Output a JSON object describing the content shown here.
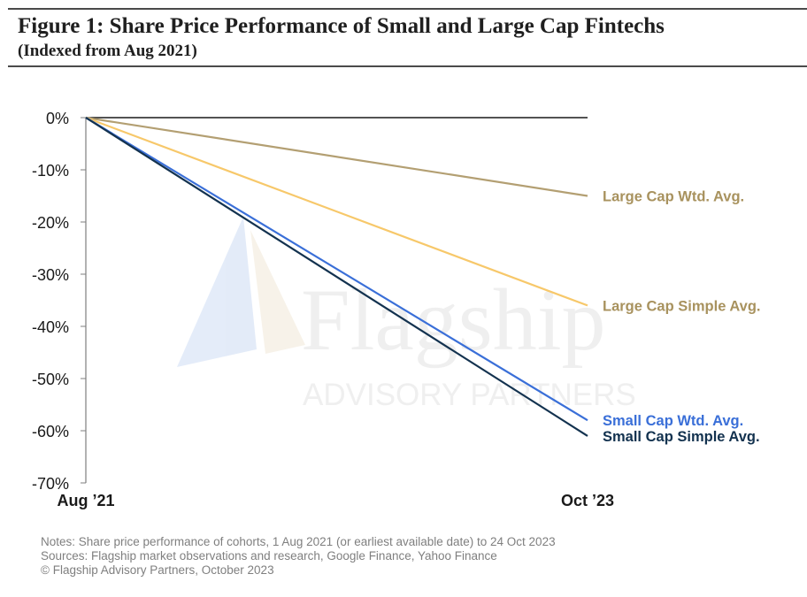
{
  "title": "Figure 1: Share Price Performance of Small and Large Cap Fintechs",
  "subtitle": "(Indexed from Aug 2021)",
  "watermark": {
    "brand": "Flagship",
    "tagline": "ADVISORY PARTNERS"
  },
  "notes": [
    "Notes: Share price performance of cohorts, 1 Aug 2021 (or earliest available date) to 24 Oct 2023",
    "Sources: Flagship market observations and research, Google Finance, Yahoo Finance",
    "© Flagship Advisory Partners, October 2023"
  ],
  "chart_data": {
    "type": "line",
    "x": [
      "Aug ’21",
      "Oct ’23"
    ],
    "x_tick_labels": [
      "Aug ’21",
      "Oct ’23"
    ],
    "y_tick_labels": [
      "0%",
      "-10%",
      "-20%",
      "-30%",
      "-40%",
      "-50%",
      "-60%",
      "-70%"
    ],
    "y_ticks": [
      0,
      -10,
      -20,
      -30,
      -40,
      -50,
      -60,
      -70
    ],
    "ylim": [
      -70,
      0
    ],
    "grid": false,
    "legend": "direct labels at line ends",
    "series": [
      {
        "name": "Large Cap Wtd. Avg.",
        "values": [
          0,
          -15
        ],
        "color": "#b39f72",
        "label_color": "#a8925e"
      },
      {
        "name": "Large Cap Simple Avg.",
        "values": [
          0,
          -36
        ],
        "color": "#f7c86a",
        "label_color": "#a8925e"
      },
      {
        "name": "Small Cap Wtd. Avg.",
        "values": [
          0,
          -58
        ],
        "color": "#3a6fd8",
        "label_color": "#3a6fd8"
      },
      {
        "name": "Small Cap Simple Avg.",
        "values": [
          0,
          -61
        ],
        "color": "#13324f",
        "label_color": "#13324f"
      }
    ]
  }
}
